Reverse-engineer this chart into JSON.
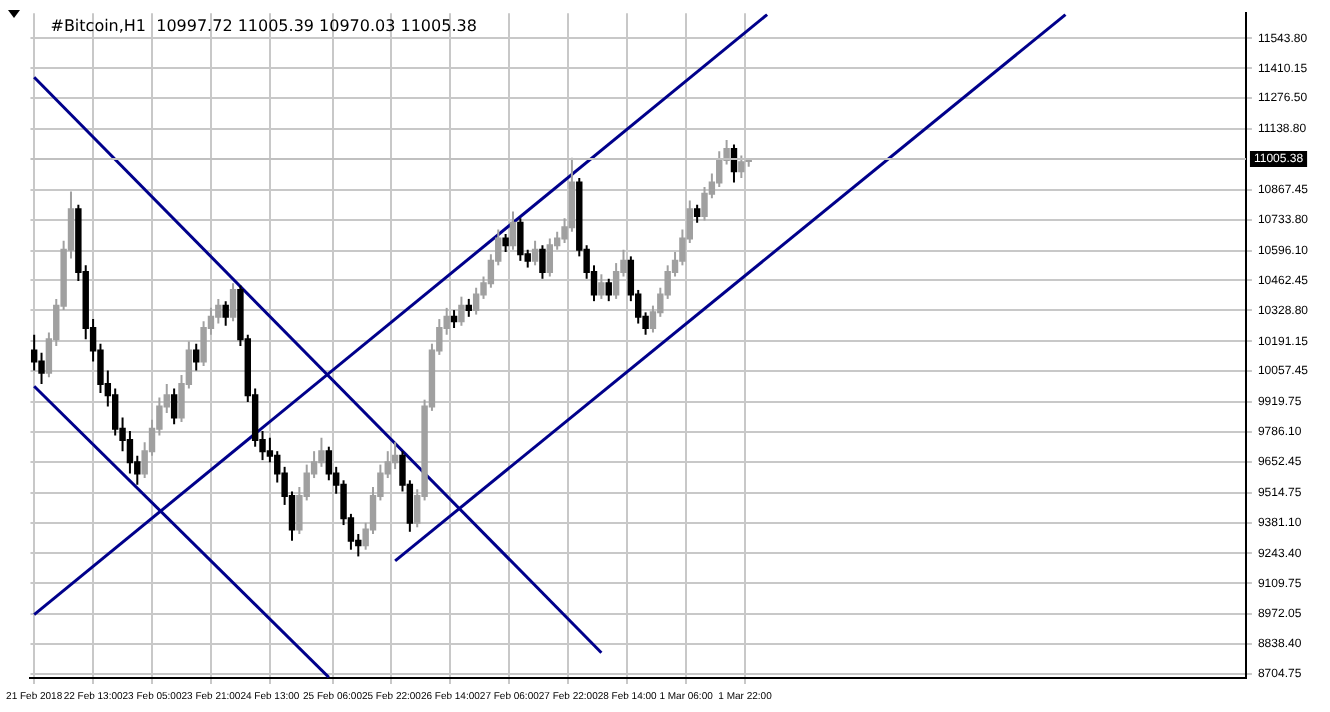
{
  "chart_data": {
    "type": "candlestick",
    "title": "#Bitcoin,H1  10997.72 11005.39 10970.03 11005.38",
    "xlim": [
      "2018-02-21T20:00",
      "2018-03-07T14:00"
    ],
    "ylim": [
      8687,
      11656
    ],
    "xticks": [
      {
        "value": "2018-02-21T21:00",
        "label": "21 Feb 2018"
      },
      {
        "value": "2018-02-22T13:00",
        "label": "22 Feb 13:00"
      },
      {
        "value": "2018-02-23T05:00",
        "label": "23 Feb 05:00"
      },
      {
        "value": "2018-02-23T21:00",
        "label": "23 Feb 21:00"
      },
      {
        "value": "2018-02-24T13:00",
        "label": "24 Feb 13:00"
      },
      {
        "value": "2018-02-25T06:00",
        "label": "25 Feb 06:00"
      },
      {
        "value": "2018-02-25T22:00",
        "label": "25 Feb 22:00"
      },
      {
        "value": "2018-02-26T14:00",
        "label": "26 Feb 14:00"
      },
      {
        "value": "2018-02-27T06:00",
        "label": "27 Feb 06:00"
      },
      {
        "value": "2018-02-27T22:00",
        "label": "27 Feb 22:00"
      },
      {
        "value": "2018-02-28T14:00",
        "label": "28 Feb 14:00"
      },
      {
        "value": "2018-03-01T06:00",
        "label": "1 Mar 06:00"
      },
      {
        "value": "2018-03-01T22:00",
        "label": "1 Mar 22:00"
      }
    ],
    "yticks": [
      {
        "value": 8704.75,
        "label": "8704.75"
      },
      {
        "value": 8838.4,
        "label": "8838.40"
      },
      {
        "value": 8972.05,
        "label": "8972.05"
      },
      {
        "value": 9109.75,
        "label": "9109.75"
      },
      {
        "value": 9243.4,
        "label": "9243.40"
      },
      {
        "value": 9381.1,
        "label": "9381.10"
      },
      {
        "value": 9514.75,
        "label": "9514.75"
      },
      {
        "value": 9652.45,
        "label": "9652.45"
      },
      {
        "value": 9786.1,
        "label": "9786.10"
      },
      {
        "value": 9919.75,
        "label": "9919.75"
      },
      {
        "value": 10057.45,
        "label": "10057.45"
      },
      {
        "value": 10191.15,
        "label": "10191.15"
      },
      {
        "value": 10328.8,
        "label": "10328.80"
      },
      {
        "value": 10462.45,
        "label": "10462.45"
      },
      {
        "value": 10596.1,
        "label": "10596.10"
      },
      {
        "value": 10733.8,
        "label": "10733.80"
      },
      {
        "value": 10867.45,
        "label": "10867.45"
      },
      {
        "value": 11138.8,
        "label": "11138.80"
      },
      {
        "value": 11276.5,
        "label": "11276.50"
      },
      {
        "value": 11410.15,
        "label": "11410.15"
      },
      {
        "value": 11543.8,
        "label": "11543.80"
      }
    ],
    "grid": true,
    "ref_lines": [
      {
        "axis": "y",
        "value": 11005.38,
        "label": "11005.38",
        "color": "#c0c0c0"
      }
    ],
    "series": [
      {
        "type": "candlestick",
        "colors": [
          "#000000",
          "#000000",
          "#a0a0a0",
          "#a0a0a0",
          "#a0a0a0",
          "#a0a0a0",
          "#000000",
          "#000000",
          "#000000",
          "#000000",
          "#000000",
          "#000000",
          "#000000",
          "#000000",
          "#000000",
          "#a0a0a0",
          "#a0a0a0",
          "#a0a0a0",
          "#a0a0a0",
          "#000000",
          "#a0a0a0",
          "#a0a0a0",
          "#000000",
          "#a0a0a0",
          "#a0a0a0",
          "#a0a0a0",
          "#000000",
          "#a0a0a0",
          "#000000",
          "#000000",
          "#000000",
          "#000000",
          "#000000",
          "#000000",
          "#000000",
          "#000000",
          "#a0a0a0",
          "#a0a0a0",
          "#a0a0a0",
          "#a0a0a0",
          "#000000",
          "#000000",
          "#000000",
          "#000000",
          "#000000",
          "#a0a0a0",
          "#a0a0a0",
          "#a0a0a0",
          "#a0a0a0",
          "#a0a0a0",
          "#000000",
          "#000000",
          "#a0a0a0",
          "#a0a0a0",
          "#a0a0a0",
          "#a0a0a0",
          "#a0a0a0",
          "#000000",
          "#a0a0a0",
          "#000000",
          "#a0a0a0",
          "#a0a0a0",
          "#a0a0a0",
          "#a0a0a0",
          "#000000",
          "#a0a0a0",
          "#000000",
          "#000000",
          "#a0a0a0",
          "#000000",
          "#a0a0a0",
          "#a0a0a0",
          "#a0a0a0",
          "#a0a0a0",
          "#000000",
          "#000000",
          "#000000",
          "#a0a0a0",
          "#000000",
          "#a0a0a0",
          "#a0a0a0",
          "#000000",
          "#000000",
          "#000000",
          "#a0a0a0",
          "#a0a0a0",
          "#a0a0a0",
          "#a0a0a0",
          "#a0a0a0",
          "#a0a0a0",
          "#000000",
          "#a0a0a0",
          "#a0a0a0",
          "#a0a0a0",
          "#a0a0a0",
          "#000000",
          "#a0a0a0",
          "#a0a0a0"
        ],
        "x": [
          "2018-02-21T21:00",
          "2018-02-21T23:00",
          "2018-02-22T01:00",
          "2018-02-22T03:00",
          "2018-02-22T05:00",
          "2018-02-22T07:00",
          "2018-02-22T09:00",
          "2018-02-22T11:00",
          "2018-02-22T13:00",
          "2018-02-22T15:00",
          "2018-02-22T17:00",
          "2018-02-22T19:00",
          "2018-02-22T21:00",
          "2018-02-22T23:00",
          "2018-02-23T01:00",
          "2018-02-23T03:00",
          "2018-02-23T05:00",
          "2018-02-23T07:00",
          "2018-02-23T09:00",
          "2018-02-23T11:00",
          "2018-02-23T13:00",
          "2018-02-23T15:00",
          "2018-02-23T17:00",
          "2018-02-23T19:00",
          "2018-02-23T21:00",
          "2018-02-23T23:00",
          "2018-02-24T01:00",
          "2018-02-24T03:00",
          "2018-02-24T05:00",
          "2018-02-24T07:00",
          "2018-02-24T09:00",
          "2018-02-24T11:00",
          "2018-02-24T13:00",
          "2018-02-24T15:00",
          "2018-02-24T17:00",
          "2018-02-24T19:00",
          "2018-02-24T21:00",
          "2018-02-24T23:00",
          "2018-02-25T01:00",
          "2018-02-25T03:00",
          "2018-02-25T05:00",
          "2018-02-25T07:00",
          "2018-02-25T09:00",
          "2018-02-25T11:00",
          "2018-02-25T13:00",
          "2018-02-25T15:00",
          "2018-02-25T17:00",
          "2018-02-25T19:00",
          "2018-02-25T21:00",
          "2018-02-25T23:00",
          "2018-02-26T01:00",
          "2018-02-26T03:00",
          "2018-02-26T05:00",
          "2018-02-26T07:00",
          "2018-02-26T09:00",
          "2018-02-26T11:00",
          "2018-02-26T13:00",
          "2018-02-26T15:00",
          "2018-02-26T17:00",
          "2018-02-26T19:00",
          "2018-02-26T21:00",
          "2018-02-26T23:00",
          "2018-02-27T01:00",
          "2018-02-27T03:00",
          "2018-02-27T05:00",
          "2018-02-27T07:00",
          "2018-02-27T09:00",
          "2018-02-27T11:00",
          "2018-02-27T13:00",
          "2018-02-27T15:00",
          "2018-02-27T17:00",
          "2018-02-27T19:00",
          "2018-02-27T21:00",
          "2018-02-27T23:00",
          "2018-02-28T01:00",
          "2018-02-28T03:00",
          "2018-02-28T05:00",
          "2018-02-28T07:00",
          "2018-02-28T09:00",
          "2018-02-28T11:00",
          "2018-02-28T13:00",
          "2018-02-28T15:00",
          "2018-02-28T17:00",
          "2018-02-28T19:00",
          "2018-02-28T21:00",
          "2018-02-28T23:00",
          "2018-03-01T01:00",
          "2018-03-01T03:00",
          "2018-03-01T05:00",
          "2018-03-01T07:00",
          "2018-03-01T09:00",
          "2018-03-01T11:00",
          "2018-03-01T13:00",
          "2018-03-01T15:00",
          "2018-03-01T17:00",
          "2018-03-01T19:00",
          "2018-03-01T21:00",
          "2018-03-01T23:00"
        ],
        "ohlc": [
          [
            10150,
            10220,
            10060,
            10100
          ],
          [
            10100,
            10140,
            10000,
            10050
          ],
          [
            10050,
            10230,
            10030,
            10200
          ],
          [
            10200,
            10380,
            10170,
            10350
          ],
          [
            10350,
            10640,
            10330,
            10600
          ],
          [
            10600,
            10860,
            10560,
            10780
          ],
          [
            10780,
            10800,
            10460,
            10500
          ],
          [
            10500,
            10530,
            10200,
            10250
          ],
          [
            10250,
            10290,
            10100,
            10150
          ],
          [
            10150,
            10180,
            9960,
            10000
          ],
          [
            10000,
            10060,
            9900,
            9950
          ],
          [
            9950,
            9980,
            9770,
            9800
          ],
          [
            9800,
            9850,
            9700,
            9750
          ],
          [
            9750,
            9790,
            9600,
            9650
          ],
          [
            9650,
            9680,
            9550,
            9600
          ],
          [
            9600,
            9740,
            9580,
            9700
          ],
          [
            9700,
            9840,
            9680,
            9800
          ],
          [
            9800,
            9940,
            9770,
            9900
          ],
          [
            9900,
            10000,
            9870,
            9950
          ],
          [
            9950,
            9980,
            9820,
            9850
          ],
          [
            9850,
            10040,
            9830,
            10000
          ],
          [
            10000,
            10190,
            9980,
            10150
          ],
          [
            10150,
            10180,
            10060,
            10100
          ],
          [
            10100,
            10280,
            10080,
            10250
          ],
          [
            10250,
            10340,
            10220,
            10300
          ],
          [
            10300,
            10380,
            10270,
            10350
          ],
          [
            10350,
            10370,
            10260,
            10300
          ],
          [
            10300,
            10450,
            10280,
            10420
          ],
          [
            10420,
            10440,
            10170,
            10200
          ],
          [
            10200,
            10220,
            9920,
            9950
          ],
          [
            9950,
            9980,
            9720,
            9750
          ],
          [
            9750,
            9790,
            9660,
            9700
          ],
          [
            9700,
            9760,
            9650,
            9680
          ],
          [
            9680,
            9700,
            9560,
            9600
          ],
          [
            9600,
            9630,
            9460,
            9500
          ],
          [
            9500,
            9520,
            9300,
            9350
          ],
          [
            9350,
            9540,
            9330,
            9500
          ],
          [
            9500,
            9640,
            9480,
            9600
          ],
          [
            9600,
            9700,
            9580,
            9650
          ],
          [
            9650,
            9760,
            9630,
            9700
          ],
          [
            9700,
            9720,
            9570,
            9600
          ],
          [
            9600,
            9630,
            9510,
            9550
          ],
          [
            9550,
            9570,
            9370,
            9400
          ],
          [
            9400,
            9420,
            9260,
            9300
          ],
          [
            9300,
            9330,
            9230,
            9280
          ],
          [
            9280,
            9380,
            9260,
            9350
          ],
          [
            9350,
            9540,
            9330,
            9500
          ],
          [
            9500,
            9640,
            9480,
            9600
          ],
          [
            9600,
            9700,
            9580,
            9650
          ],
          [
            9650,
            9740,
            9620,
            9680
          ],
          [
            9680,
            9700,
            9520,
            9550
          ],
          [
            9550,
            9570,
            9340,
            9380
          ],
          [
            9380,
            9530,
            9360,
            9500
          ],
          [
            9500,
            9930,
            9480,
            9900
          ],
          [
            9900,
            10180,
            9880,
            10150
          ],
          [
            10150,
            10290,
            10130,
            10250
          ],
          [
            10250,
            10340,
            10220,
            10300
          ],
          [
            10300,
            10330,
            10250,
            10280
          ],
          [
            10280,
            10390,
            10260,
            10350
          ],
          [
            10350,
            10380,
            10300,
            10330
          ],
          [
            10330,
            10430,
            10310,
            10400
          ],
          [
            10400,
            10480,
            10380,
            10450
          ],
          [
            10450,
            10580,
            10430,
            10550
          ],
          [
            10550,
            10690,
            10530,
            10650
          ],
          [
            10650,
            10670,
            10590,
            10620
          ],
          [
            10620,
            10770,
            10600,
            10720
          ],
          [
            10720,
            10740,
            10550,
            10580
          ],
          [
            10580,
            10600,
            10520,
            10550
          ],
          [
            10550,
            10640,
            10530,
            10600
          ],
          [
            10600,
            10620,
            10470,
            10500
          ],
          [
            10500,
            10650,
            10480,
            10620
          ],
          [
            10620,
            10680,
            10600,
            10650
          ],
          [
            10650,
            10740,
            10630,
            10700
          ],
          [
            10700,
            11010,
            10680,
            10900
          ],
          [
            10900,
            10920,
            10570,
            10600
          ],
          [
            10600,
            10620,
            10470,
            10500
          ],
          [
            10500,
            10530,
            10370,
            10400
          ],
          [
            10400,
            10490,
            10380,
            10450
          ],
          [
            10450,
            10470,
            10370,
            10400
          ],
          [
            10400,
            10540,
            10380,
            10500
          ],
          [
            10500,
            10600,
            10480,
            10550
          ],
          [
            10550,
            10570,
            10370,
            10400
          ],
          [
            10400,
            10420,
            10270,
            10300
          ],
          [
            10300,
            10320,
            10220,
            10250
          ],
          [
            10250,
            10350,
            10230,
            10320
          ],
          [
            10320,
            10430,
            10300,
            10400
          ],
          [
            10400,
            10530,
            10380,
            10500
          ],
          [
            10500,
            10590,
            10480,
            10550
          ],
          [
            10550,
            10690,
            10530,
            10650
          ],
          [
            10650,
            10820,
            10630,
            10780
          ],
          [
            10780,
            10800,
            10720,
            10750
          ],
          [
            10750,
            10880,
            10730,
            10850
          ],
          [
            10850,
            10940,
            10830,
            10900
          ],
          [
            10900,
            11040,
            10880,
            11000
          ],
          [
            11000,
            11090,
            10980,
            11050
          ],
          [
            11050,
            11070,
            10900,
            10950
          ],
          [
            10950,
            11020,
            10920,
            10990
          ],
          [
            10997.72,
            11005.39,
            10970.03,
            11005.38
          ]
        ]
      },
      {
        "type": "line",
        "color": "#00008b",
        "x": [
          "2018-02-21T21:00",
          "2018-02-28T07:00"
        ],
        "values": [
          11370,
          8800
        ]
      },
      {
        "type": "line",
        "color": "#00008b",
        "x": [
          "2018-02-21T21:00",
          "2018-02-25T05:00"
        ],
        "values": [
          9990,
          8690
        ]
      },
      {
        "type": "line",
        "color": "#00008b",
        "x": [
          "2018-02-21T21:00",
          "2018-03-02T04:00"
        ],
        "values": [
          8970,
          11650
        ]
      },
      {
        "type": "line",
        "color": "#00008b",
        "x": [
          "2018-02-25T23:00",
          "2018-03-05T13:00"
        ],
        "values": [
          9210,
          11650
        ]
      }
    ]
  }
}
